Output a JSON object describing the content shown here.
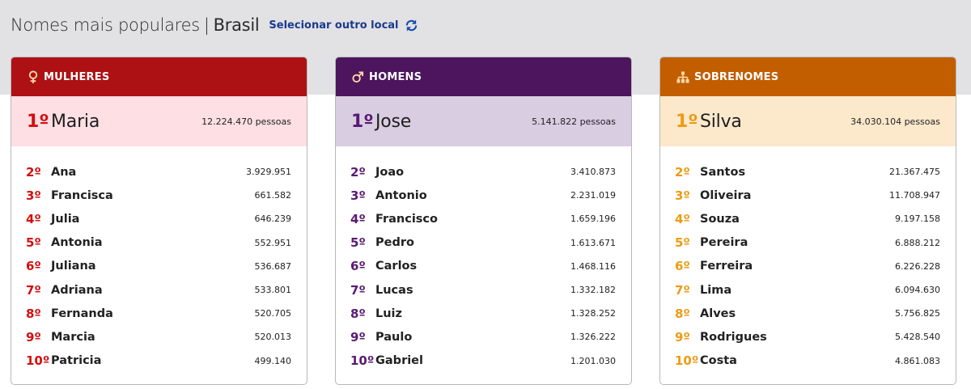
{
  "header": {
    "title": "Nomes mais populares",
    "separator": "|",
    "location": "Brasil",
    "change_location_label": "Selecionar outro local"
  },
  "colors": {
    "women": "#ad1114",
    "men": "#4c155e",
    "surnames": "#c25e00"
  },
  "cards": [
    {
      "title": "MULHERES",
      "icon": "female-icon",
      "first": {
        "rank": "1º",
        "name": "Maria",
        "count": "12.224.470 pessoas"
      },
      "rows": [
        {
          "rank": "2º",
          "name": "Ana",
          "count": "3.929.951"
        },
        {
          "rank": "3º",
          "name": "Francisca",
          "count": "661.582"
        },
        {
          "rank": "4º",
          "name": "Julia",
          "count": "646.239"
        },
        {
          "rank": "5º",
          "name": "Antonia",
          "count": "552.951"
        },
        {
          "rank": "6º",
          "name": "Juliana",
          "count": "536.687"
        },
        {
          "rank": "7º",
          "name": "Adriana",
          "count": "533.801"
        },
        {
          "rank": "8º",
          "name": "Fernanda",
          "count": "520.705"
        },
        {
          "rank": "9º",
          "name": "Marcia",
          "count": "520.013"
        },
        {
          "rank": "10º",
          "name": "Patricia",
          "count": "499.140"
        }
      ]
    },
    {
      "title": "HOMENS",
      "icon": "male-icon",
      "first": {
        "rank": "1º",
        "name": "Jose",
        "count": "5.141.822 pessoas"
      },
      "rows": [
        {
          "rank": "2º",
          "name": "Joao",
          "count": "3.410.873"
        },
        {
          "rank": "3º",
          "name": "Antonio",
          "count": "2.231.019"
        },
        {
          "rank": "4º",
          "name": "Francisco",
          "count": "1.659.196"
        },
        {
          "rank": "5º",
          "name": "Pedro",
          "count": "1.613.671"
        },
        {
          "rank": "6º",
          "name": "Carlos",
          "count": "1.468.116"
        },
        {
          "rank": "7º",
          "name": "Lucas",
          "count": "1.332.182"
        },
        {
          "rank": "8º",
          "name": "Luiz",
          "count": "1.328.252"
        },
        {
          "rank": "9º",
          "name": "Paulo",
          "count": "1.326.222"
        },
        {
          "rank": "10º",
          "name": "Gabriel",
          "count": "1.201.030"
        }
      ]
    },
    {
      "title": "SOBRENOMES",
      "icon": "family-tree-icon",
      "first": {
        "rank": "1º",
        "name": "Silva",
        "count": "34.030.104 pessoas"
      },
      "rows": [
        {
          "rank": "2º",
          "name": "Santos",
          "count": "21.367.475"
        },
        {
          "rank": "3º",
          "name": "Oliveira",
          "count": "11.708.947"
        },
        {
          "rank": "4º",
          "name": "Souza",
          "count": "9.197.158"
        },
        {
          "rank": "5º",
          "name": "Pereira",
          "count": "6.888.212"
        },
        {
          "rank": "6º",
          "name": "Ferreira",
          "count": "6.226.228"
        },
        {
          "rank": "7º",
          "name": "Lima",
          "count": "6.094.630"
        },
        {
          "rank": "8º",
          "name": "Alves",
          "count": "5.756.825"
        },
        {
          "rank": "9º",
          "name": "Rodrigues",
          "count": "5.428.540"
        },
        {
          "rank": "10º",
          "name": "Costa",
          "count": "4.861.083"
        }
      ]
    }
  ]
}
